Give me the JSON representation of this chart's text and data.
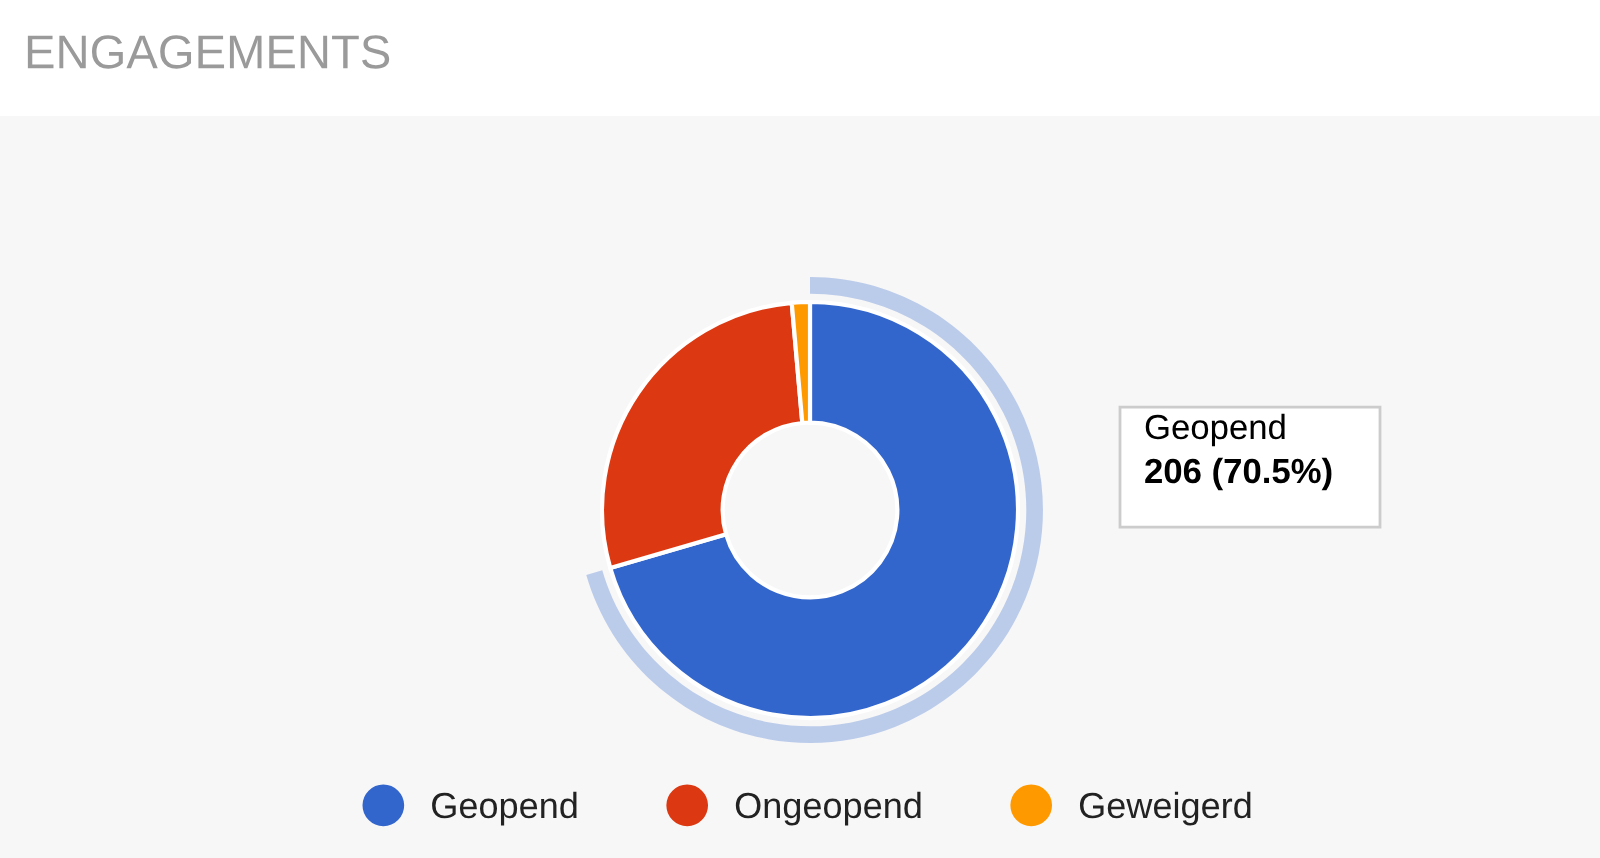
{
  "chart_data": {
    "type": "donut",
    "title": "ENGAGEMENTS",
    "categories": [
      "Geopend",
      "Ongeopend",
      "Geweigerd"
    ],
    "values": [
      70.5,
      28.1,
      1.4
    ],
    "colors": [
      "#3366cc",
      "#dc3912",
      "#ff9900"
    ],
    "legend": "bottom",
    "annotations": [
      "Geopend\n206 (70.5%)"
    ]
  }
}
